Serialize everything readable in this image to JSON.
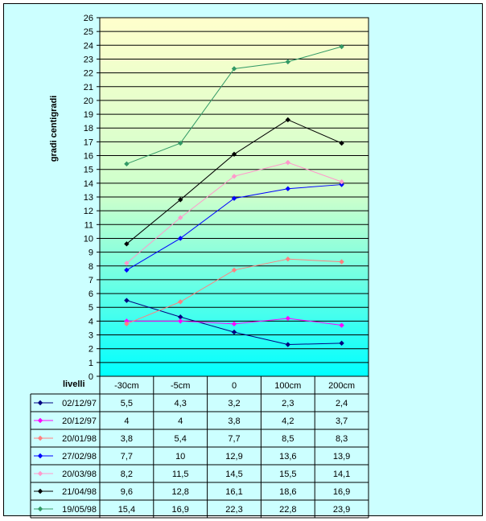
{
  "chart_data": {
    "type": "line",
    "title": "",
    "xlabel": "",
    "ylabel": "gradi centigradi",
    "ylim": [
      0,
      26
    ],
    "y_ticks": [
      "0",
      "1",
      "2",
      "3",
      "4",
      "5",
      "6",
      "7",
      "8",
      "9",
      "10",
      "11",
      "12",
      "13",
      "14",
      "15",
      "16",
      "17",
      "18",
      "19",
      "20",
      "21",
      "22",
      "23",
      "24",
      "25",
      "26"
    ],
    "grid": true,
    "legend": "data table below chart",
    "table_header_label": "livelli",
    "categories": [
      "-30cm",
      "-5cm",
      "0",
      "100cm",
      "200cm"
    ],
    "series": [
      {
        "name": "02/12/97",
        "color": "#000080",
        "values": [
          5.5,
          4.3,
          3.2,
          2.3,
          2.4
        ],
        "labels": [
          "5,5",
          "4,3",
          "3,2",
          "2,3",
          "2,4"
        ]
      },
      {
        "name": "20/12/97",
        "color": "#ff00ff",
        "values": [
          4,
          4,
          3.8,
          4.2,
          3.7
        ],
        "labels": [
          "4",
          "4",
          "3,8",
          "4,2",
          "3,7"
        ]
      },
      {
        "name": "20/01/98",
        "color": "#ff8080",
        "values": [
          3.8,
          5.4,
          7.7,
          8.5,
          8.3
        ],
        "labels": [
          "3,8",
          "5,4",
          "7,7",
          "8,5",
          "8,3"
        ]
      },
      {
        "name": "27/02/98",
        "color": "#0000ff",
        "values": [
          7.7,
          10,
          12.9,
          13.6,
          13.9
        ],
        "labels": [
          "7,7",
          "10",
          "12,9",
          "13,6",
          "13,9"
        ]
      },
      {
        "name": "20/03/98",
        "color": "#ff99cc",
        "values": [
          8.2,
          11.5,
          14.5,
          15.5,
          14.1
        ],
        "labels": [
          "8,2",
          "11,5",
          "14,5",
          "15,5",
          "14,1"
        ]
      },
      {
        "name": "21/04/98",
        "color": "#000000",
        "values": [
          9.6,
          12.8,
          16.1,
          18.6,
          16.9
        ],
        "labels": [
          "9,6",
          "12,8",
          "16,1",
          "18,6",
          "16,9"
        ]
      },
      {
        "name": "19/05/98",
        "color": "#339966",
        "values": [
          15.4,
          16.9,
          22.3,
          22.8,
          23.9
        ],
        "labels": [
          "15,4",
          "16,9",
          "22,3",
          "22,8",
          "23,9"
        ]
      }
    ]
  }
}
